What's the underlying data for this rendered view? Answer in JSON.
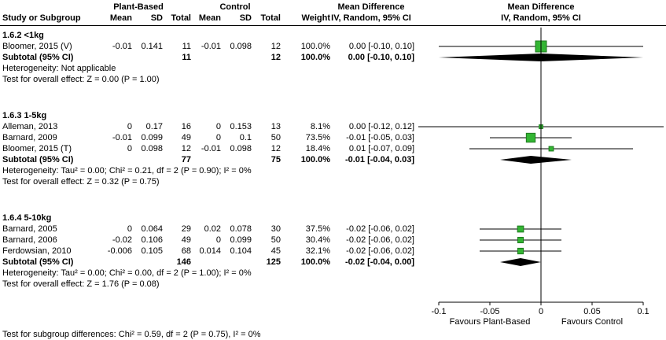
{
  "header": {
    "study": "Study or Subgroup",
    "group1": "Plant-Based",
    "group2": "Control",
    "mean": "Mean",
    "sd": "SD",
    "total": "Total",
    "weight": "Weight",
    "md": "Mean Difference",
    "method": "IV, Random, 95% CI"
  },
  "axis": {
    "min": -0.1,
    "max": 0.1,
    "ticks": [
      -0.1,
      -0.05,
      0,
      0.05,
      0.1
    ],
    "tick_labels": [
      "-0.1",
      "-0.05",
      "0",
      "0.05",
      "0.1"
    ],
    "left_label": "Favours Plant-Based",
    "right_label": "Favours Control"
  },
  "colors": {
    "marker": "#33b533",
    "marker_border": "#1e7a1e",
    "diamond": "#000000",
    "line": "#000000"
  },
  "footer": "Test for subgroup differences: Chi² = 0.59, df = 2 (P = 0.75), I² = 0%",
  "chart_data": {
    "type": "forest",
    "effect_measure": "Mean Difference IV, Random, 95% CI",
    "subgroups": [
      {
        "label": "1.6.2 <1kg",
        "studies": [
          {
            "name": "Bloomer, 2015 (V)",
            "mean1": "-0.01",
            "sd1": "0.141",
            "n1": "11",
            "mean2": "-0.01",
            "sd2": "0.098",
            "n2": "12",
            "weight": "100.0%",
            "ci": "0.00 [-0.10, 0.10]",
            "md": 0,
            "lo": -0.1,
            "hi": 0.1,
            "w": 100.0
          }
        ],
        "subtotal": {
          "label": "Subtotal (95% CI)",
          "n1": "11",
          "n2": "12",
          "weight": "100.0%",
          "ci": "0.00 [-0.10, 0.10]",
          "md": 0,
          "lo": -0.1,
          "hi": 0.1
        },
        "heterogeneity": "Heterogeneity: Not applicable",
        "overall": "Test for overall effect: Z = 0.00 (P = 1.00)"
      },
      {
        "label": "1.6.3 1-5kg",
        "studies": [
          {
            "name": "Alleman, 2013",
            "mean1": "0",
            "sd1": "0.17",
            "n1": "16",
            "mean2": "0",
            "sd2": "0.153",
            "n2": "13",
            "weight": "8.1%",
            "ci": "0.00 [-0.12, 0.12]",
            "md": 0,
            "lo": -0.12,
            "hi": 0.12,
            "w": 8.1
          },
          {
            "name": "Barnard, 2009",
            "mean1": "-0.01",
            "sd1": "0.099",
            "n1": "49",
            "mean2": "0",
            "sd2": "0.1",
            "n2": "50",
            "weight": "73.5%",
            "ci": "-0.01 [-0.05, 0.03]",
            "md": -0.01,
            "lo": -0.05,
            "hi": 0.03,
            "w": 73.5
          },
          {
            "name": "Bloomer, 2015 (T)",
            "mean1": "0",
            "sd1": "0.098",
            "n1": "12",
            "mean2": "-0.01",
            "sd2": "0.098",
            "n2": "12",
            "weight": "18.4%",
            "ci": "0.01 [-0.07, 0.09]",
            "md": 0.01,
            "lo": -0.07,
            "hi": 0.09,
            "w": 18.4
          }
        ],
        "subtotal": {
          "label": "Subtotal (95% CI)",
          "n1": "77",
          "n2": "75",
          "weight": "100.0%",
          "ci": "-0.01 [-0.04, 0.03]",
          "md": -0.01,
          "lo": -0.04,
          "hi": 0.03
        },
        "heterogeneity": "Heterogeneity: Tau² = 0.00; Chi² = 0.21, df = 2 (P = 0.90); I² = 0%",
        "overall": "Test for overall effect: Z = 0.32 (P = 0.75)"
      },
      {
        "label": "1.6.4 5-10kg",
        "studies": [
          {
            "name": "Barnard, 2005",
            "mean1": "0",
            "sd1": "0.064",
            "n1": "29",
            "mean2": "0.02",
            "sd2": "0.078",
            "n2": "30",
            "weight": "37.5%",
            "ci": "-0.02 [-0.06, 0.02]",
            "md": -0.02,
            "lo": -0.06,
            "hi": 0.02,
            "w": 37.5
          },
          {
            "name": "Barnard, 2006",
            "mean1": "-0.02",
            "sd1": "0.106",
            "n1": "49",
            "mean2": "0",
            "sd2": "0.099",
            "n2": "50",
            "weight": "30.4%",
            "ci": "-0.02 [-0.06, 0.02]",
            "md": -0.02,
            "lo": -0.06,
            "hi": 0.02,
            "w": 30.4
          },
          {
            "name": "Ferdowsian, 2010",
            "mean1": "-0.006",
            "sd1": "0.105",
            "n1": "68",
            "mean2": "0.014",
            "sd2": "0.104",
            "n2": "45",
            "weight": "32.1%",
            "ci": "-0.02 [-0.06, 0.02]",
            "md": -0.02,
            "lo": -0.06,
            "hi": 0.02,
            "w": 32.1
          }
        ],
        "subtotal": {
          "label": "Subtotal (95% CI)",
          "n1": "146",
          "n2": "125",
          "weight": "100.0%",
          "ci": "-0.02 [-0.04, 0.00]",
          "md": -0.02,
          "lo": -0.04,
          "hi": 0.0
        },
        "heterogeneity": "Heterogeneity: Tau² = 0.00; Chi² = 0.00, df = 2 (P = 1.00); I² = 0%",
        "overall": "Test for overall effect: Z = 1.76 (P = 0.08)"
      }
    ]
  }
}
